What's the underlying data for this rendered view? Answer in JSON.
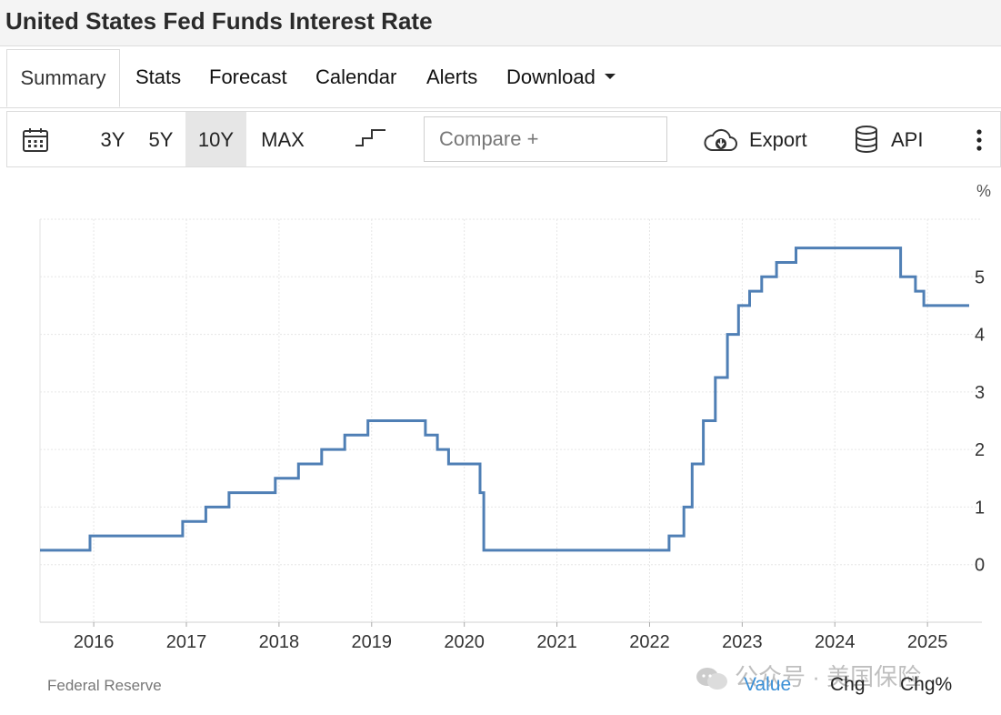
{
  "page": {
    "title": "United States Fed Funds Interest Rate"
  },
  "tabs": [
    {
      "label": "Summary",
      "active": true
    },
    {
      "label": "Stats"
    },
    {
      "label": "Forecast"
    },
    {
      "label": "Calendar"
    },
    {
      "label": "Alerts"
    },
    {
      "label": "Download",
      "has_dropdown": true
    }
  ],
  "toolbar": {
    "calendar_icon": "calendar-icon",
    "ranges": [
      "3Y",
      "5Y",
      "10Y",
      "MAX"
    ],
    "selected_range": "10Y",
    "chart_style_icon": "step-line-icon",
    "compare_placeholder": "Compare +",
    "export_label": "Export",
    "export_icon": "cloud-download-icon",
    "api_label": "API",
    "api_icon": "database-icon",
    "more_icon": "vertical-dots-icon"
  },
  "footer": {
    "source": "Federal Reserve",
    "options": [
      "Value",
      "Chg",
      "Chg%"
    ],
    "active_option": "Value"
  },
  "watermark": {
    "text": "公众号 · 美国保险"
  },
  "chart_data": {
    "type": "line",
    "line_style": "step",
    "y_unit_label": "%",
    "y_axis_position": "right",
    "ylim": [
      -1,
      6
    ],
    "yticks": [
      0,
      1,
      2,
      3,
      4,
      5
    ],
    "xlim": [
      2015.42,
      2025.45
    ],
    "xticks": [
      "2016",
      "2017",
      "2018",
      "2019",
      "2020",
      "2021",
      "2022",
      "2023",
      "2024",
      "2025"
    ],
    "grid": true,
    "line_color": "#4f7fb5",
    "series": [
      {
        "x": [
          2015.42,
          2015.96,
          2016.96,
          2017.21,
          2017.46,
          2017.96,
          2018.21,
          2018.46,
          2018.71,
          2018.96,
          2019.58,
          2019.71,
          2019.83,
          2020.17,
          2020.21,
          2022.21,
          2022.37,
          2022.46,
          2022.58,
          2022.71,
          2022.84,
          2022.96,
          2023.08,
          2023.21,
          2023.37,
          2023.58,
          2024.71,
          2024.87,
          2024.96,
          2025.45
        ],
        "y": [
          0.25,
          0.5,
          0.75,
          1.0,
          1.25,
          1.5,
          1.75,
          2.0,
          2.25,
          2.5,
          2.25,
          2.0,
          1.75,
          1.25,
          0.25,
          0.5,
          1.0,
          1.75,
          2.5,
          3.25,
          4.0,
          4.5,
          4.75,
          5.0,
          5.25,
          5.5,
          5.0,
          4.75,
          4.5,
          4.5
        ]
      }
    ]
  }
}
